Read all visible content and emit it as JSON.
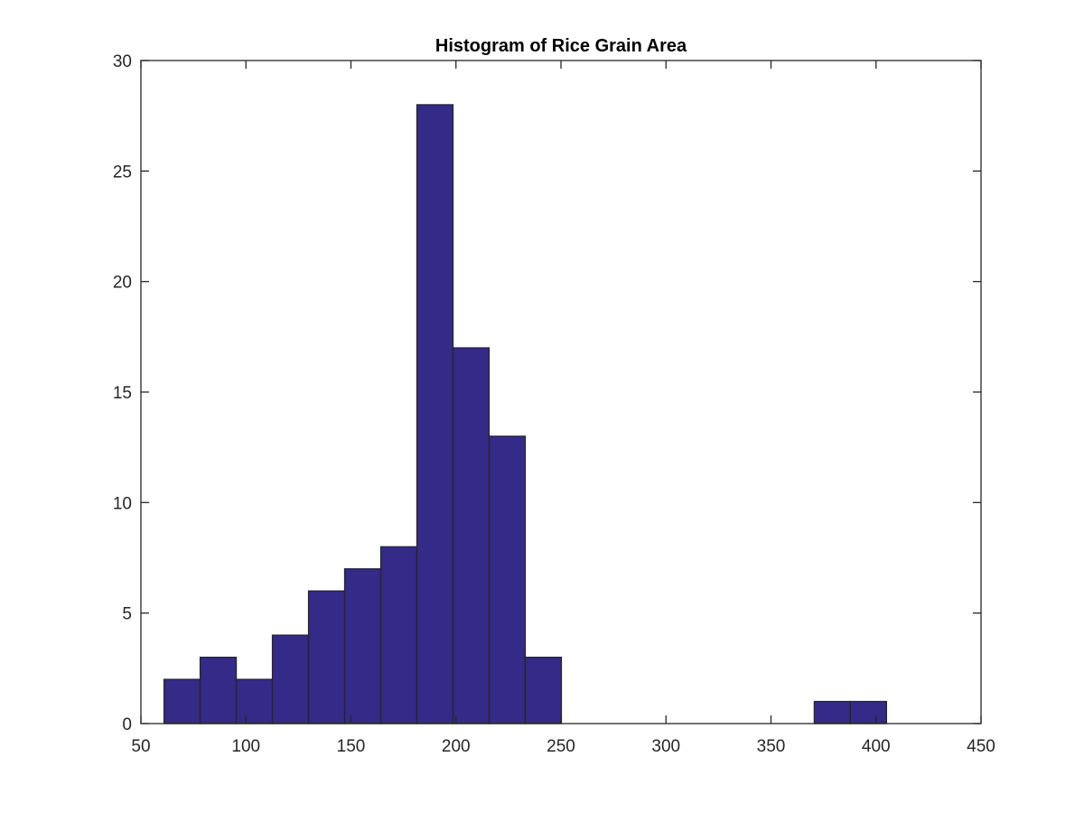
{
  "chart_data": {
    "type": "bar",
    "title": "Histogram of Rice Grain Area",
    "xlabel": "",
    "ylabel": "",
    "xlim": [
      50,
      450
    ],
    "ylim": [
      0,
      30
    ],
    "xticks": [
      50,
      100,
      150,
      200,
      250,
      300,
      350,
      400,
      450
    ],
    "yticks": [
      0,
      5,
      10,
      15,
      20,
      25,
      30
    ],
    "bin_edges": [
      61,
      78.2,
      95.4,
      112.6,
      129.8,
      147,
      164.2,
      181.4,
      198.6,
      215.8,
      233,
      250.2,
      267.4,
      284.6,
      301.8,
      319,
      336.2,
      353.4,
      370.6,
      387.8,
      405
    ],
    "values": [
      2,
      3,
      2,
      4,
      6,
      7,
      8,
      28,
      17,
      13,
      3,
      0,
      0,
      0,
      0,
      0,
      0,
      0,
      1,
      1
    ],
    "grid": false,
    "colors": {
      "bar_fill": "#342a87",
      "bar_edge": "#262626",
      "axis": "#262626"
    }
  }
}
